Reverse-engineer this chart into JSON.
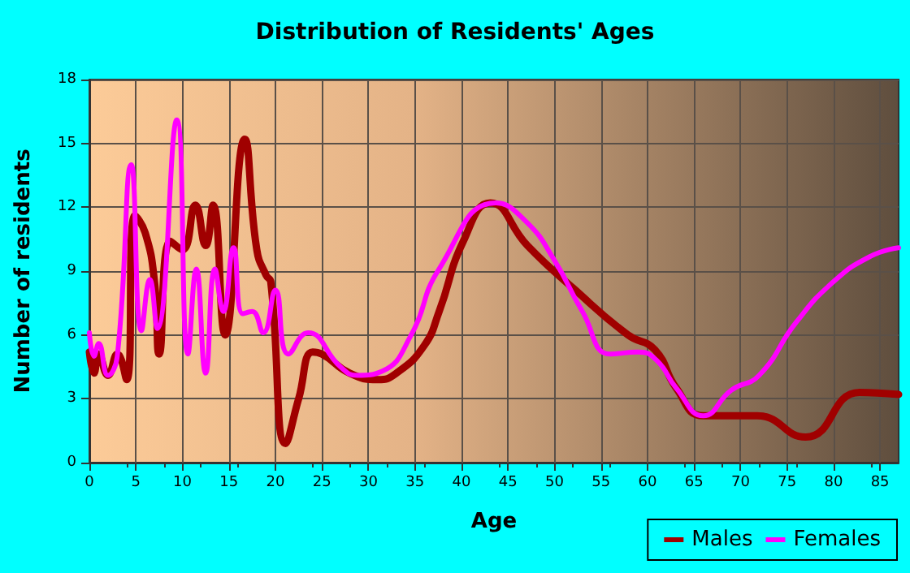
{
  "chart_data": {
    "type": "line",
    "title": "Distribution of Residents' Ages",
    "xlabel": "Age",
    "ylabel": "Number of residents",
    "xlim": [
      0,
      87
    ],
    "xticks": [
      0,
      5,
      10,
      15,
      20,
      25,
      30,
      35,
      40,
      45,
      50,
      55,
      60,
      65,
      70,
      75,
      80,
      85
    ],
    "ylim": [
      0,
      18
    ],
    "yticks": [
      0,
      3,
      6,
      9,
      12,
      15,
      18
    ],
    "grid": true,
    "legend": "bottom right",
    "marker": "none",
    "line_style": "solid",
    "series": [
      {
        "name": "Males",
        "color": "#a00000",
        "x": [
          0,
          0.5,
          1,
          2,
          3,
          4,
          4.9,
          6,
          7,
          7.5,
          8.7,
          10,
          11.4,
          12.5,
          13.3,
          14.6,
          16.7,
          18,
          19,
          19.5,
          21.1,
          22.5,
          24,
          25,
          28,
          31,
          33,
          36,
          37.6,
          40.2,
          43.1,
          47.1,
          52,
          57.9,
          60.8,
          63.1,
          66,
          71.8,
          77,
          82.8,
          87
        ],
        "values": [
          5.2,
          4.2,
          5.1,
          4.1,
          5.1,
          3.9,
          11.6,
          10.8,
          8.5,
          5.1,
          10.4,
          10,
          12.1,
          10.2,
          12.1,
          6,
          15.2,
          10,
          8.8,
          8.5,
          0.9,
          3,
          5.2,
          5.1,
          4.2,
          3.9,
          4.2,
          5.5,
          7.1,
          10.4,
          12.2,
          10.2,
          8.2,
          6,
          5.3,
          3.5,
          2.2,
          2.2,
          1.2,
          3.3,
          3.2
        ]
      },
      {
        "name": "Females",
        "color": "#ff00ff",
        "x": [
          0,
          0.5,
          1,
          2,
          3,
          4.5,
          5.6,
          6.5,
          7.3,
          9.4,
          10.6,
          11.5,
          12.5,
          13.5,
          14.4,
          15.5,
          16.5,
          17.5,
          18.7,
          20,
          21.4,
          23.5,
          27,
          28.8,
          31.5,
          34.6,
          37.6,
          43.7,
          47,
          50,
          53,
          56,
          59,
          61,
          63.1,
          66,
          69,
          72,
          76,
          80,
          84,
          87
        ],
        "values": [
          6.1,
          5,
          5.6,
          4.1,
          5,
          14,
          6.2,
          8.6,
          6.3,
          16.1,
          5.1,
          9.1,
          4.2,
          9.1,
          7.1,
          10.1,
          7,
          7.1,
          6.1,
          8.1,
          5.1,
          6.1,
          4.5,
          4.1,
          4.3,
          6,
          9.1,
          12.2,
          11.3,
          9.5,
          7.1,
          5.1,
          5.2,
          4.8,
          3.5,
          2.2,
          3.4,
          4.1,
          6.6,
          8.5,
          9.7,
          10.1
        ]
      }
    ]
  }
}
